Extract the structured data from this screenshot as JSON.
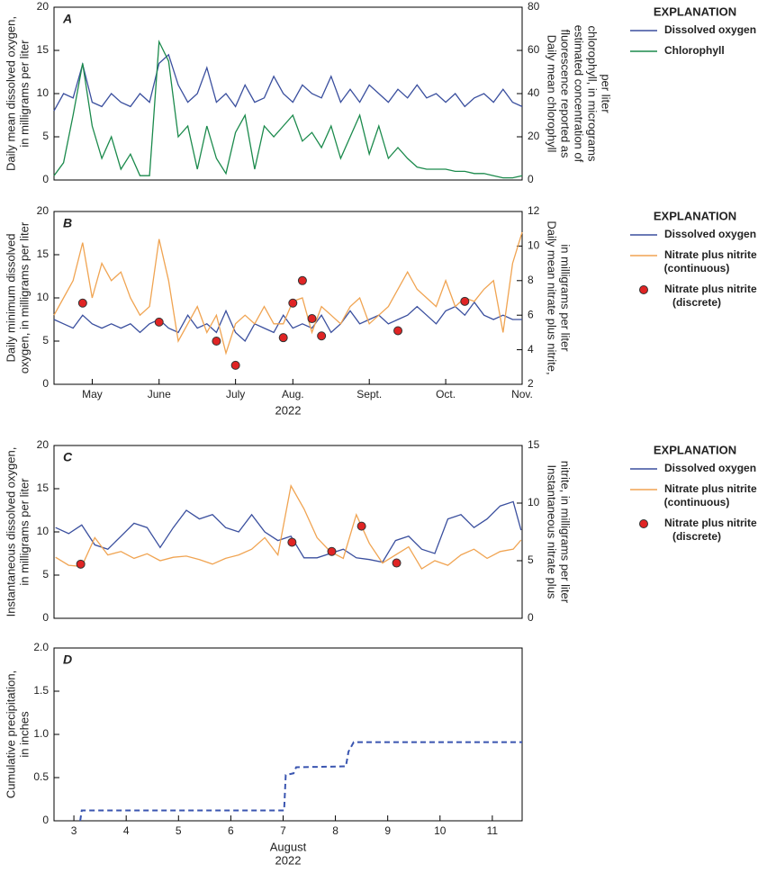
{
  "chart_data": [
    {
      "type": "line",
      "panel_label": "A",
      "ylabel": [
        "Daily mean dissolved oxygen,",
        "in milligrams per liter"
      ],
      "y2label": [
        "Daily mean chlorophyll",
        "fluorescence reported as",
        "estimated concentration of",
        "chlorophyll, in micrograms",
        "per liter"
      ],
      "ylim": [
        0,
        20
      ],
      "yticks": [
        0,
        5,
        10,
        15,
        20
      ],
      "y2lim": [
        0,
        80
      ],
      "y2ticks": [
        0,
        20,
        40,
        60,
        80
      ],
      "legend_title": "EXPLANATION",
      "series": [
        {
          "name": "Dissolved oxygen",
          "color": "#3a4f9e",
          "values": [
            8,
            10,
            9.5,
            13.4,
            9,
            8.5,
            10,
            9,
            8.5,
            10,
            9,
            13.5,
            14.5,
            11,
            9,
            10,
            13,
            9,
            10,
            8.5,
            11,
            9,
            9.5,
            12,
            10,
            9,
            11,
            10,
            9.5,
            12,
            9,
            10.5,
            9,
            11,
            10,
            9,
            10.5,
            9.5,
            11,
            9.5,
            10,
            9,
            10,
            8.5,
            9.5,
            10,
            9,
            10.5,
            9,
            8.5
          ]
        },
        {
          "name": "Chlorophyll",
          "color": "#1b8a4c",
          "axis": "y2",
          "values": [
            2,
            8,
            30,
            54,
            25,
            10,
            20,
            5,
            12,
            2,
            2,
            64,
            55,
            20,
            25,
            5,
            25,
            10,
            3,
            22,
            30,
            5,
            25,
            20,
            25,
            30,
            18,
            22,
            15,
            25,
            10,
            20,
            30,
            12,
            25,
            10,
            15,
            10,
            6,
            5,
            5,
            5,
            4,
            4,
            3,
            3,
            2,
            1,
            1,
            2
          ]
        }
      ]
    },
    {
      "type": "line",
      "panel_label": "B",
      "ylabel": [
        "Daily minimum dissolved",
        "oxygen, in milligrams per liter"
      ],
      "y2label": [
        "Daily mean nitrate plus nitrite,",
        "in milligrams per liter"
      ],
      "ylim": [
        0,
        20
      ],
      "yticks": [
        0,
        5,
        10,
        15,
        20
      ],
      "y2lim": [
        2,
        12
      ],
      "y2ticks": [
        2,
        4,
        6,
        8,
        10,
        12
      ],
      "categories": [
        null,
        null,
        null,
        null,
        "May",
        null,
        null,
        null,
        null,
        null,
        null,
        "June",
        null,
        null,
        null,
        null,
        null,
        null,
        null,
        "July",
        null,
        null,
        null,
        null,
        null,
        "Aug.",
        null,
        null,
        null,
        null,
        null,
        null,
        null,
        "Sept.",
        null,
        null,
        null,
        null,
        null,
        null,
        null,
        "Oct.",
        null,
        null,
        null,
        null,
        null,
        null,
        null,
        "Nov."
      ],
      "xlabel": [
        "2022"
      ],
      "legend_title": "EXPLANATION",
      "series": [
        {
          "name": "Dissolved oxygen",
          "color": "#3a4f9e",
          "values": [
            7.5,
            7,
            6.5,
            8,
            7,
            6.5,
            7,
            6.5,
            7,
            6,
            7,
            7.5,
            6.5,
            6,
            8,
            6.5,
            7,
            6,
            8.5,
            6,
            5,
            7,
            6.5,
            6,
            8,
            6.5,
            7,
            6.5,
            8,
            6,
            7,
            8.5,
            7,
            7.5,
            8,
            7,
            7.5,
            8,
            9,
            8,
            7,
            8.5,
            9,
            8,
            9.5,
            8,
            7.5,
            8,
            7.5,
            7.5
          ]
        },
        {
          "name": [
            "Nitrate plus nitrite",
            "(continuous)"
          ],
          "color": "#f0a452",
          "axis": "y2",
          "values": [
            6,
            7,
            8,
            10.2,
            7,
            9,
            8,
            8.5,
            7,
            6,
            6.5,
            10.4,
            8,
            4.5,
            5.5,
            6.5,
            5,
            6,
            3.8,
            5.5,
            6,
            5.5,
            6.5,
            5.5,
            5.5,
            6.8,
            7,
            5,
            6.5,
            6,
            5.5,
            6.5,
            7,
            5.5,
            6,
            6.5,
            7.5,
            8.5,
            7.5,
            7,
            6.5,
            8,
            6.5,
            7,
            6.8,
            7.5,
            8,
            5,
            9,
            10.8
          ]
        },
        {
          "name": [
            "Nitrate plus nitrite",
            "(discrete)"
          ],
          "color": "#e02424",
          "axis": "y2",
          "marker": true,
          "values": [
            null,
            null,
            null,
            6.7,
            null,
            null,
            null,
            null,
            null,
            null,
            null,
            5.6,
            null,
            null,
            null,
            null,
            null,
            4.5,
            null,
            3.1,
            null,
            null,
            null,
            null,
            4.7,
            6.7,
            8.0,
            5.8,
            4.8,
            null,
            null,
            null,
            null,
            null,
            null,
            null,
            5.1,
            null,
            null,
            null,
            null,
            null,
            null,
            6.8,
            null,
            null,
            null,
            null,
            null,
            null
          ]
        }
      ]
    },
    {
      "type": "line",
      "panel_label": "C",
      "ylabel": [
        "Instantaneous dissolved oxygen,",
        "in milligrams per liter"
      ],
      "y2label": [
        "Instantaneous nitrate plus",
        "nitrite, in milligrams per liter"
      ],
      "ylim": [
        0,
        20
      ],
      "yticks": [
        0,
        5,
        10,
        15,
        20
      ],
      "y2lim": [
        0,
        15
      ],
      "y2ticks": [
        0,
        5,
        10,
        15
      ],
      "x": [
        2.65,
        2.9,
        3.15,
        3.4,
        3.65,
        3.9,
        4.15,
        4.4,
        4.65,
        4.9,
        5.15,
        5.4,
        5.65,
        5.9,
        6.15,
        6.4,
        6.65,
        6.9,
        7.15,
        7.4,
        7.65,
        7.9,
        8.15,
        8.4,
        8.65,
        8.9,
        9.15,
        9.4,
        9.65,
        9.9,
        10.15,
        10.4,
        10.65,
        10.9,
        11.15,
        11.4,
        11.55
      ],
      "xlim": [
        2.62,
        11.57
      ],
      "legend_title": "EXPLANATION",
      "series": [
        {
          "name": "Dissolved oxygen",
          "color": "#3a4f9e",
          "values": [
            10.5,
            9.8,
            10.8,
            8.5,
            8,
            9.5,
            11,
            10.5,
            8.2,
            10.5,
            12.5,
            11.5,
            12,
            10.5,
            10,
            12,
            10,
            9,
            9.5,
            7,
            7,
            7.5,
            8,
            7,
            6.8,
            6.5,
            9,
            9.5,
            8,
            7.5,
            11.5,
            12,
            10.5,
            11.5,
            13,
            13.5,
            10.2
          ]
        },
        {
          "name": [
            "Nitrate plus nitrite",
            "(continuous)"
          ],
          "color": "#f0a452",
          "axis": "y2",
          "values": [
            5.3,
            4.6,
            4.5,
            7,
            5.5,
            5.8,
            5.2,
            5.6,
            5,
            5.3,
            5.4,
            5.1,
            4.7,
            5.2,
            5.5,
            6,
            7,
            5.5,
            11.5,
            9.5,
            7,
            5.8,
            5.2,
            9,
            6.5,
            4.8,
            5.5,
            6.2,
            4.3,
            5,
            4.6,
            5.5,
            6,
            5.2,
            5.8,
            6,
            6.8
          ]
        },
        {
          "name": [
            "Nitrate plus nitrite",
            "(discrete)"
          ],
          "color": "#e02424",
          "axis": "y2",
          "marker": true,
          "x": [
            3.13,
            7.17,
            7.93,
            8.5,
            9.17
          ],
          "values": [
            4.7,
            6.6,
            5.8,
            8.0,
            4.8
          ]
        }
      ]
    },
    {
      "type": "line",
      "panel_label": "D",
      "ylabel": [
        "Cumulative precipitation,",
        "in inches"
      ],
      "ylim": [
        0,
        2
      ],
      "yticks": [
        0,
        0.5,
        {
          "value": 1,
          "label": "1.0"
        },
        {
          "value": 1.5,
          "label": "1.5"
        },
        {
          "value": 2,
          "label": "2.0"
        }
      ],
      "x": [
        3.12,
        3.15,
        7.02,
        7.05,
        7.2,
        7.25,
        8.2,
        8.25,
        8.35,
        11.57
      ],
      "xlim": [
        2.62,
        11.57
      ],
      "xticks": [
        3,
        4,
        5,
        6,
        7,
        8,
        9,
        10,
        11
      ],
      "xlabel": [
        "August",
        "2022"
      ],
      "series": [
        {
          "color": "#3a55b0",
          "dash": true,
          "values": [
            0,
            0.12,
            0.12,
            0.53,
            0.55,
            0.62,
            0.63,
            0.8,
            0.91,
            0.91
          ]
        }
      ]
    }
  ]
}
